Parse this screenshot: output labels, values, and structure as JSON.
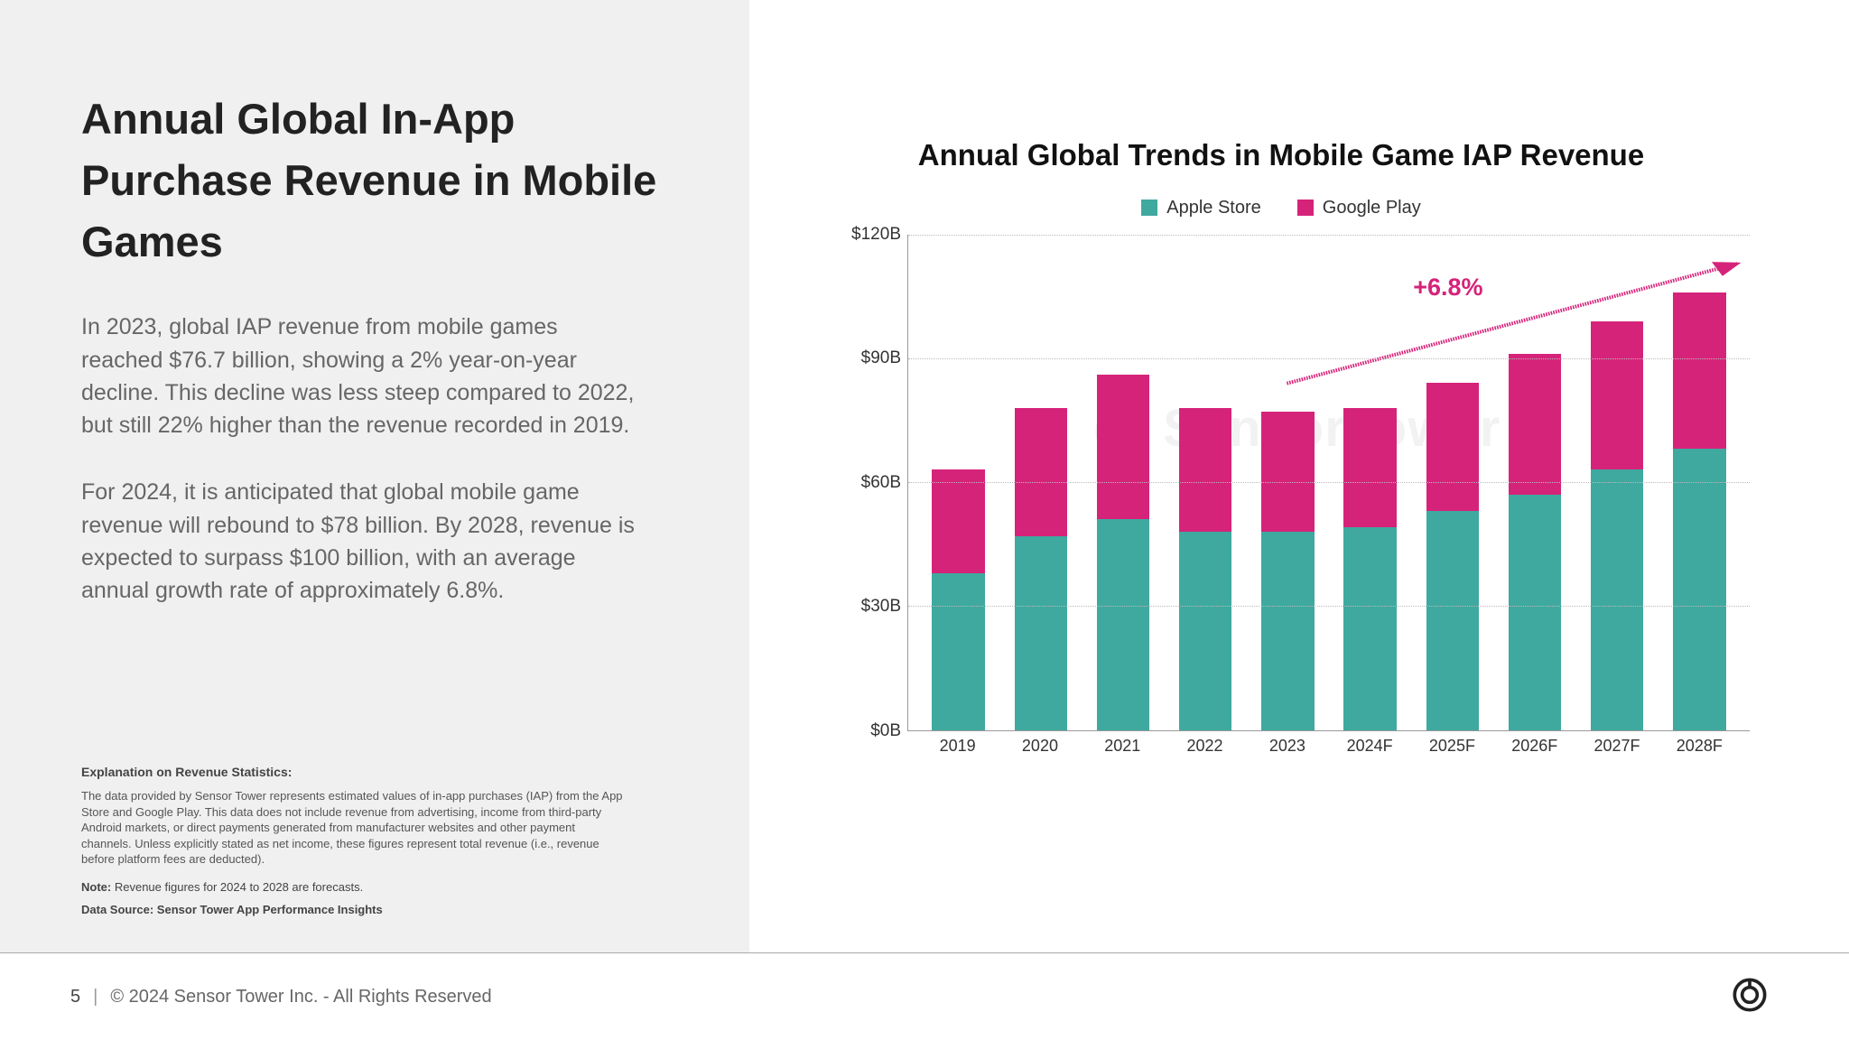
{
  "left": {
    "title": "Annual Global In-App Purchase Revenue in Mobile Games",
    "para1": "In 2023, global IAP revenue from mobile games reached $76.7 billion, showing a 2% year-on-year decline. This decline was less steep compared to 2022, but still 22% higher than the revenue recorded in 2019.",
    "para2": "For 2024, it is anticipated that global mobile game revenue will rebound to $78 billion. By 2028, revenue is expected to surpass $100 billion, with an average annual growth rate of approximately 6.8%.",
    "fine_heading": "Explanation on Revenue Statistics:",
    "fine_body": "The data provided by Sensor Tower represents estimated values of in-app purchases (IAP) from the App Store and Google Play. This data does not include revenue from advertising, income from third-party Android markets, or direct payments generated from manufacturer websites and other payment channels. Unless explicitly stated as net income, these figures represent total revenue (i.e., revenue before platform fees are deducted).",
    "fine_note_label": "Note: ",
    "fine_note_text": "Revenue figures for 2024 to 2028 are forecasts.",
    "fine_source": "Data Source: Sensor Tower App Performance Insights"
  },
  "chart": {
    "type": "stacked-bar",
    "title": "Annual Global Trends in Mobile Game IAP Revenue",
    "legend": [
      {
        "label": "Apple Store",
        "color": "#3fa99f"
      },
      {
        "label": "Google Play",
        "color": "#d6237a"
      }
    ],
    "ylim": [
      0,
      120
    ],
    "yticks": [
      0,
      30,
      60,
      90,
      120
    ],
    "ytick_labels": [
      "$0B",
      "$30B",
      "$60B",
      "$90B",
      "$120B"
    ],
    "categories": [
      "2019",
      "2020",
      "2021",
      "2022",
      "2023",
      "2024F",
      "2025F",
      "2026F",
      "2027F",
      "2028F"
    ],
    "series": {
      "apple": [
        38,
        47,
        51,
        48,
        48,
        49,
        53,
        57,
        63,
        68
      ],
      "google": [
        25,
        31,
        35,
        30,
        29,
        29,
        31,
        34,
        36,
        38
      ]
    },
    "colors": {
      "apple": "#3fa99f",
      "google": "#d6237a"
    },
    "growth_label": "+6.8%",
    "growth_color": "#d6237a",
    "background_color": "#ffffff",
    "grid_color": "#bbbbbb",
    "bar_width": 0.64,
    "watermark_text": "SensorTower"
  },
  "footer": {
    "page": "5",
    "copyright": "© 2024 Sensor Tower Inc. - All Rights Reserved"
  }
}
